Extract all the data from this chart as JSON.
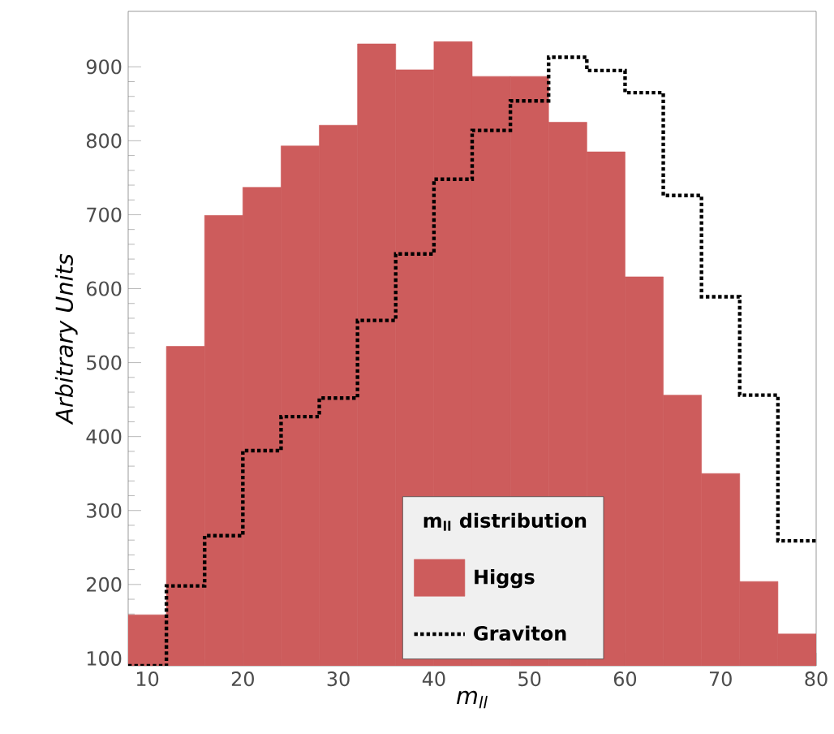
{
  "chart_data": {
    "type": "histogram",
    "xlabel": "m$_{ll}$",
    "ylabel": "Arbitrary Units",
    "legend_title": "m$_{ll}$ distribution",
    "bins": [
      8,
      12,
      16,
      20,
      24,
      28,
      32,
      36,
      40,
      44,
      48,
      52,
      56,
      60,
      64,
      68,
      72,
      76,
      80
    ],
    "series": [
      {
        "name": "Higgs",
        "color": "#cd5c5c",
        "values": [
          159,
          522,
          699,
          737,
          793,
          821,
          931,
          896,
          934,
          887,
          887,
          825,
          785,
          616,
          456,
          350,
          204,
          133
        ]
      },
      {
        "name": "Graviton",
        "color": "#000000",
        "line_style": "dotted",
        "values": [
          90,
          198,
          266,
          381,
          427,
          452,
          557,
          647,
          748,
          814,
          854,
          913,
          895,
          865,
          726,
          589,
          456,
          259
        ]
      }
    ],
    "xlim": [
      8,
      80
    ],
    "ylim": [
      90,
      975
    ],
    "xticks": [
      10,
      20,
      30,
      40,
      50,
      60,
      70,
      80
    ],
    "yticks": [
      100,
      200,
      300,
      400,
      500,
      600,
      700,
      800,
      900
    ],
    "legend": "bottom"
  }
}
